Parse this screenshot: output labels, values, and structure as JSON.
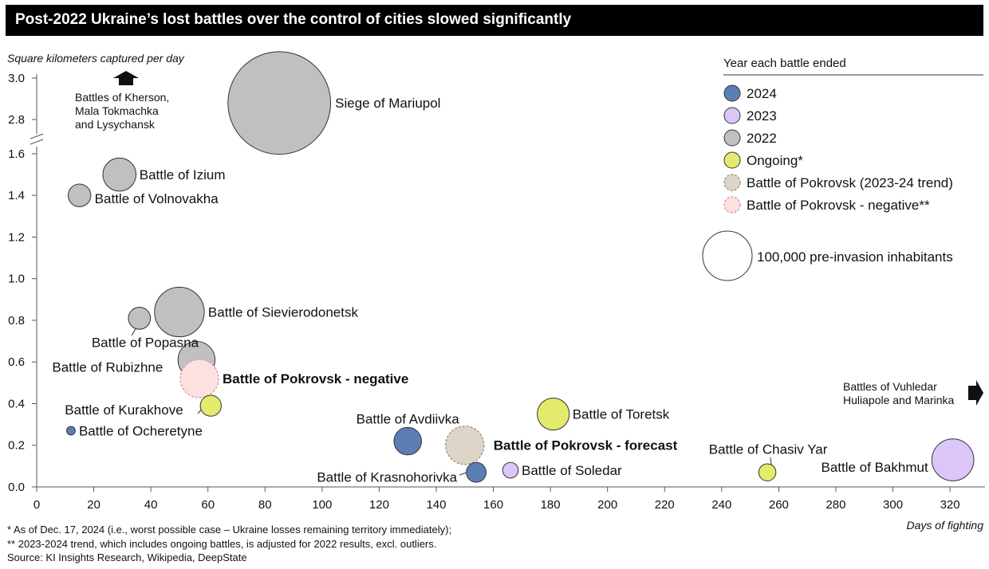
{
  "title": "Post-2022 Ukraine’s lost battles over the control of cities slowed significantly",
  "footnotes": [
    "* As of Dec. 17, 2024 (i.e., worst possible case – Ukraine losses remaining territory immediately);",
    "** 2023-2024 trend, which includes ongoing battles, is adjusted for 2022 results, excl. outliers.",
    "Source: KI Insights Research, Wikipedia, DeepState"
  ],
  "colors": {
    "y2024": "#5b7fb5",
    "y2023": "#dcc6f7",
    "y2022": "#c0c0c0",
    "ongoing": "#e3ea6c",
    "forecast": "#ddd6c8",
    "negative": "#fde1e1"
  },
  "chart_data": {
    "type": "scatter",
    "title": "Post-2022 Ukraine’s lost battles over the control of cities slowed significantly",
    "xlabel": "Days of fighting",
    "ylabel": "Square kilometers captured per day",
    "xlim": [
      0,
      330
    ],
    "x_ticks": [
      0,
      20,
      40,
      60,
      80,
      100,
      120,
      140,
      160,
      180,
      200,
      220,
      240,
      260,
      280,
      300,
      320
    ],
    "y_ticks_lower": [
      0.0,
      0.2,
      0.4,
      0.6,
      0.8,
      1.0,
      1.2,
      1.4,
      1.6
    ],
    "y_ticks_upper": [
      2.8,
      3.0
    ],
    "y_axis_break": true,
    "legend_title": "Year each battle ended",
    "legend": [
      {
        "key": "y2024",
        "label": "2024"
      },
      {
        "key": "y2023",
        "label": "2023"
      },
      {
        "key": "y2022",
        "label": "2022"
      },
      {
        "key": "ongoing",
        "label": "Ongoing*"
      },
      {
        "key": "forecast",
        "label": "Battle of Pokrovsk (2023-24 trend)"
      },
      {
        "key": "negative",
        "label": "Battle of Pokrovsk - negative**"
      }
    ],
    "size_legend": {
      "population": 100000,
      "label": "100,000 pre-invasion inhabitants"
    },
    "annotations": {
      "top_left": [
        "Battles of Kherson,",
        "Mala Tokmachka",
        "and Lysychansk"
      ],
      "right": [
        "Battles of Vuhledar",
        "Huliapole and Marinka"
      ]
    },
    "points": [
      {
        "name": "Siege of Mariupol",
        "label": "Siege of Mariupol",
        "x": 85,
        "y": 2.88,
        "pop": 431000,
        "cat": "y2022"
      },
      {
        "name": "Battle of Izium",
        "label": "Battle of Izium",
        "x": 29,
        "y": 1.5,
        "pop": 45000,
        "cat": "y2022"
      },
      {
        "name": "Battle of Volnovakha",
        "label": "Battle of Volnovakha",
        "x": 15,
        "y": 1.4,
        "pop": 21000,
        "cat": "y2022"
      },
      {
        "name": "Battle of Sievierodonetsk",
        "label": "Battle of Sievierodonetsk",
        "x": 50,
        "y": 0.84,
        "pop": 101000,
        "cat": "y2022"
      },
      {
        "name": "Battle of Popasna",
        "label": "Battle of Popasna",
        "x": 36,
        "y": 0.81,
        "pop": 20000,
        "cat": "y2022"
      },
      {
        "name": "Battle of Rubizhne",
        "label": "Battle of Rubizhne",
        "x": 56,
        "y": 0.61,
        "pop": 56000,
        "cat": "y2022"
      },
      {
        "name": "Battle of Pokrovsk - negative",
        "label": "Battle of Pokrovsk - negative",
        "x": 57,
        "y": 0.52,
        "pop": 60000,
        "cat": "negative"
      },
      {
        "name": "Battle of Kurakhove",
        "label": "Battle of Kurakhove",
        "x": 61,
        "y": 0.39,
        "pop": 18000,
        "cat": "ongoing"
      },
      {
        "name": "Battle of Ocheretyne",
        "label": "Battle of Ocheretyne",
        "x": 12,
        "y": 0.27,
        "pop": 3000,
        "cat": "y2024"
      },
      {
        "name": "Battle of Avdiivka",
        "label": "Battle of Avdiivka",
        "x": 130,
        "y": 0.22,
        "pop": 31000,
        "cat": "y2024"
      },
      {
        "name": "Battle of Pokrovsk - forecast",
        "label": "Battle of Pokrovsk - forecast",
        "x": 150,
        "y": 0.2,
        "pop": 60000,
        "cat": "forecast"
      },
      {
        "name": "Battle of Krasnohorivka",
        "label": "Battle of Krasnohorivka",
        "x": 154,
        "y": 0.07,
        "pop": 16000,
        "cat": "y2024"
      },
      {
        "name": "Battle of Soledar",
        "label": "Battle of Soledar",
        "x": 166,
        "y": 0.08,
        "pop": 10000,
        "cat": "y2023"
      },
      {
        "name": "Battle of Toretsk",
        "label": "Battle of Toretsk",
        "x": 181,
        "y": 0.35,
        "pop": 42000,
        "cat": "ongoing"
      },
      {
        "name": "Battle of Chasiv Yar",
        "label": "Battle of Chasiv Yar",
        "x": 256,
        "y": 0.07,
        "pop": 12000,
        "cat": "ongoing"
      },
      {
        "name": "Battle of Bakhmut",
        "label": "Battle of Bakhmut",
        "x": 321,
        "y": 0.13,
        "pop": 72000,
        "cat": "y2023"
      }
    ]
  }
}
